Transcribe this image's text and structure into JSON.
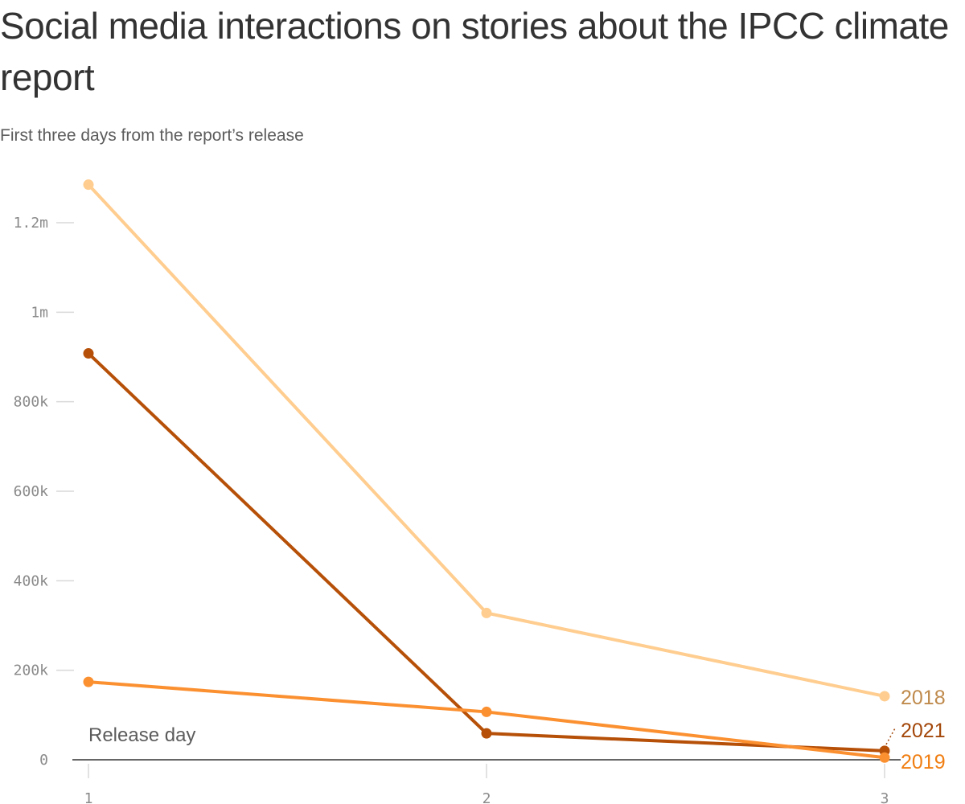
{
  "header": {
    "title": "Social media interactions on stories about the IPCC climate report",
    "subtitle": "First three days from the report’s release"
  },
  "chart_data": {
    "type": "line",
    "title": "Social media interactions on stories about the IPCC climate report",
    "subtitle": "First three days from the report’s release",
    "xlabel": "",
    "ylabel": "",
    "x": [
      1,
      2,
      3
    ],
    "x_tick_labels": [
      "1",
      "2",
      "3"
    ],
    "ylim": [
      0,
      1300000
    ],
    "y_ticks": [
      0,
      200000,
      400000,
      600000,
      800000,
      1000000,
      1200000
    ],
    "y_tick_labels": [
      "0",
      "200k",
      "400k",
      "600k",
      "800k",
      "1m",
      "1.2m"
    ],
    "grid": false,
    "legend": "direct labels at line ends",
    "series": [
      {
        "name": "2018",
        "color": "#ffcd8f",
        "label_color": "#bf8a4c",
        "values": [
          1285000,
          328000,
          142000
        ]
      },
      {
        "name": "2019",
        "color": "#fb9031",
        "label_color": "#f07e12",
        "values": [
          174000,
          107000,
          5000
        ]
      },
      {
        "name": "2021",
        "color": "#b65008",
        "label_color": "#a3470a",
        "values": [
          908000,
          59000,
          20000
        ]
      }
    ],
    "annotations": [
      {
        "text": "Release day",
        "x": 1
      }
    ]
  }
}
